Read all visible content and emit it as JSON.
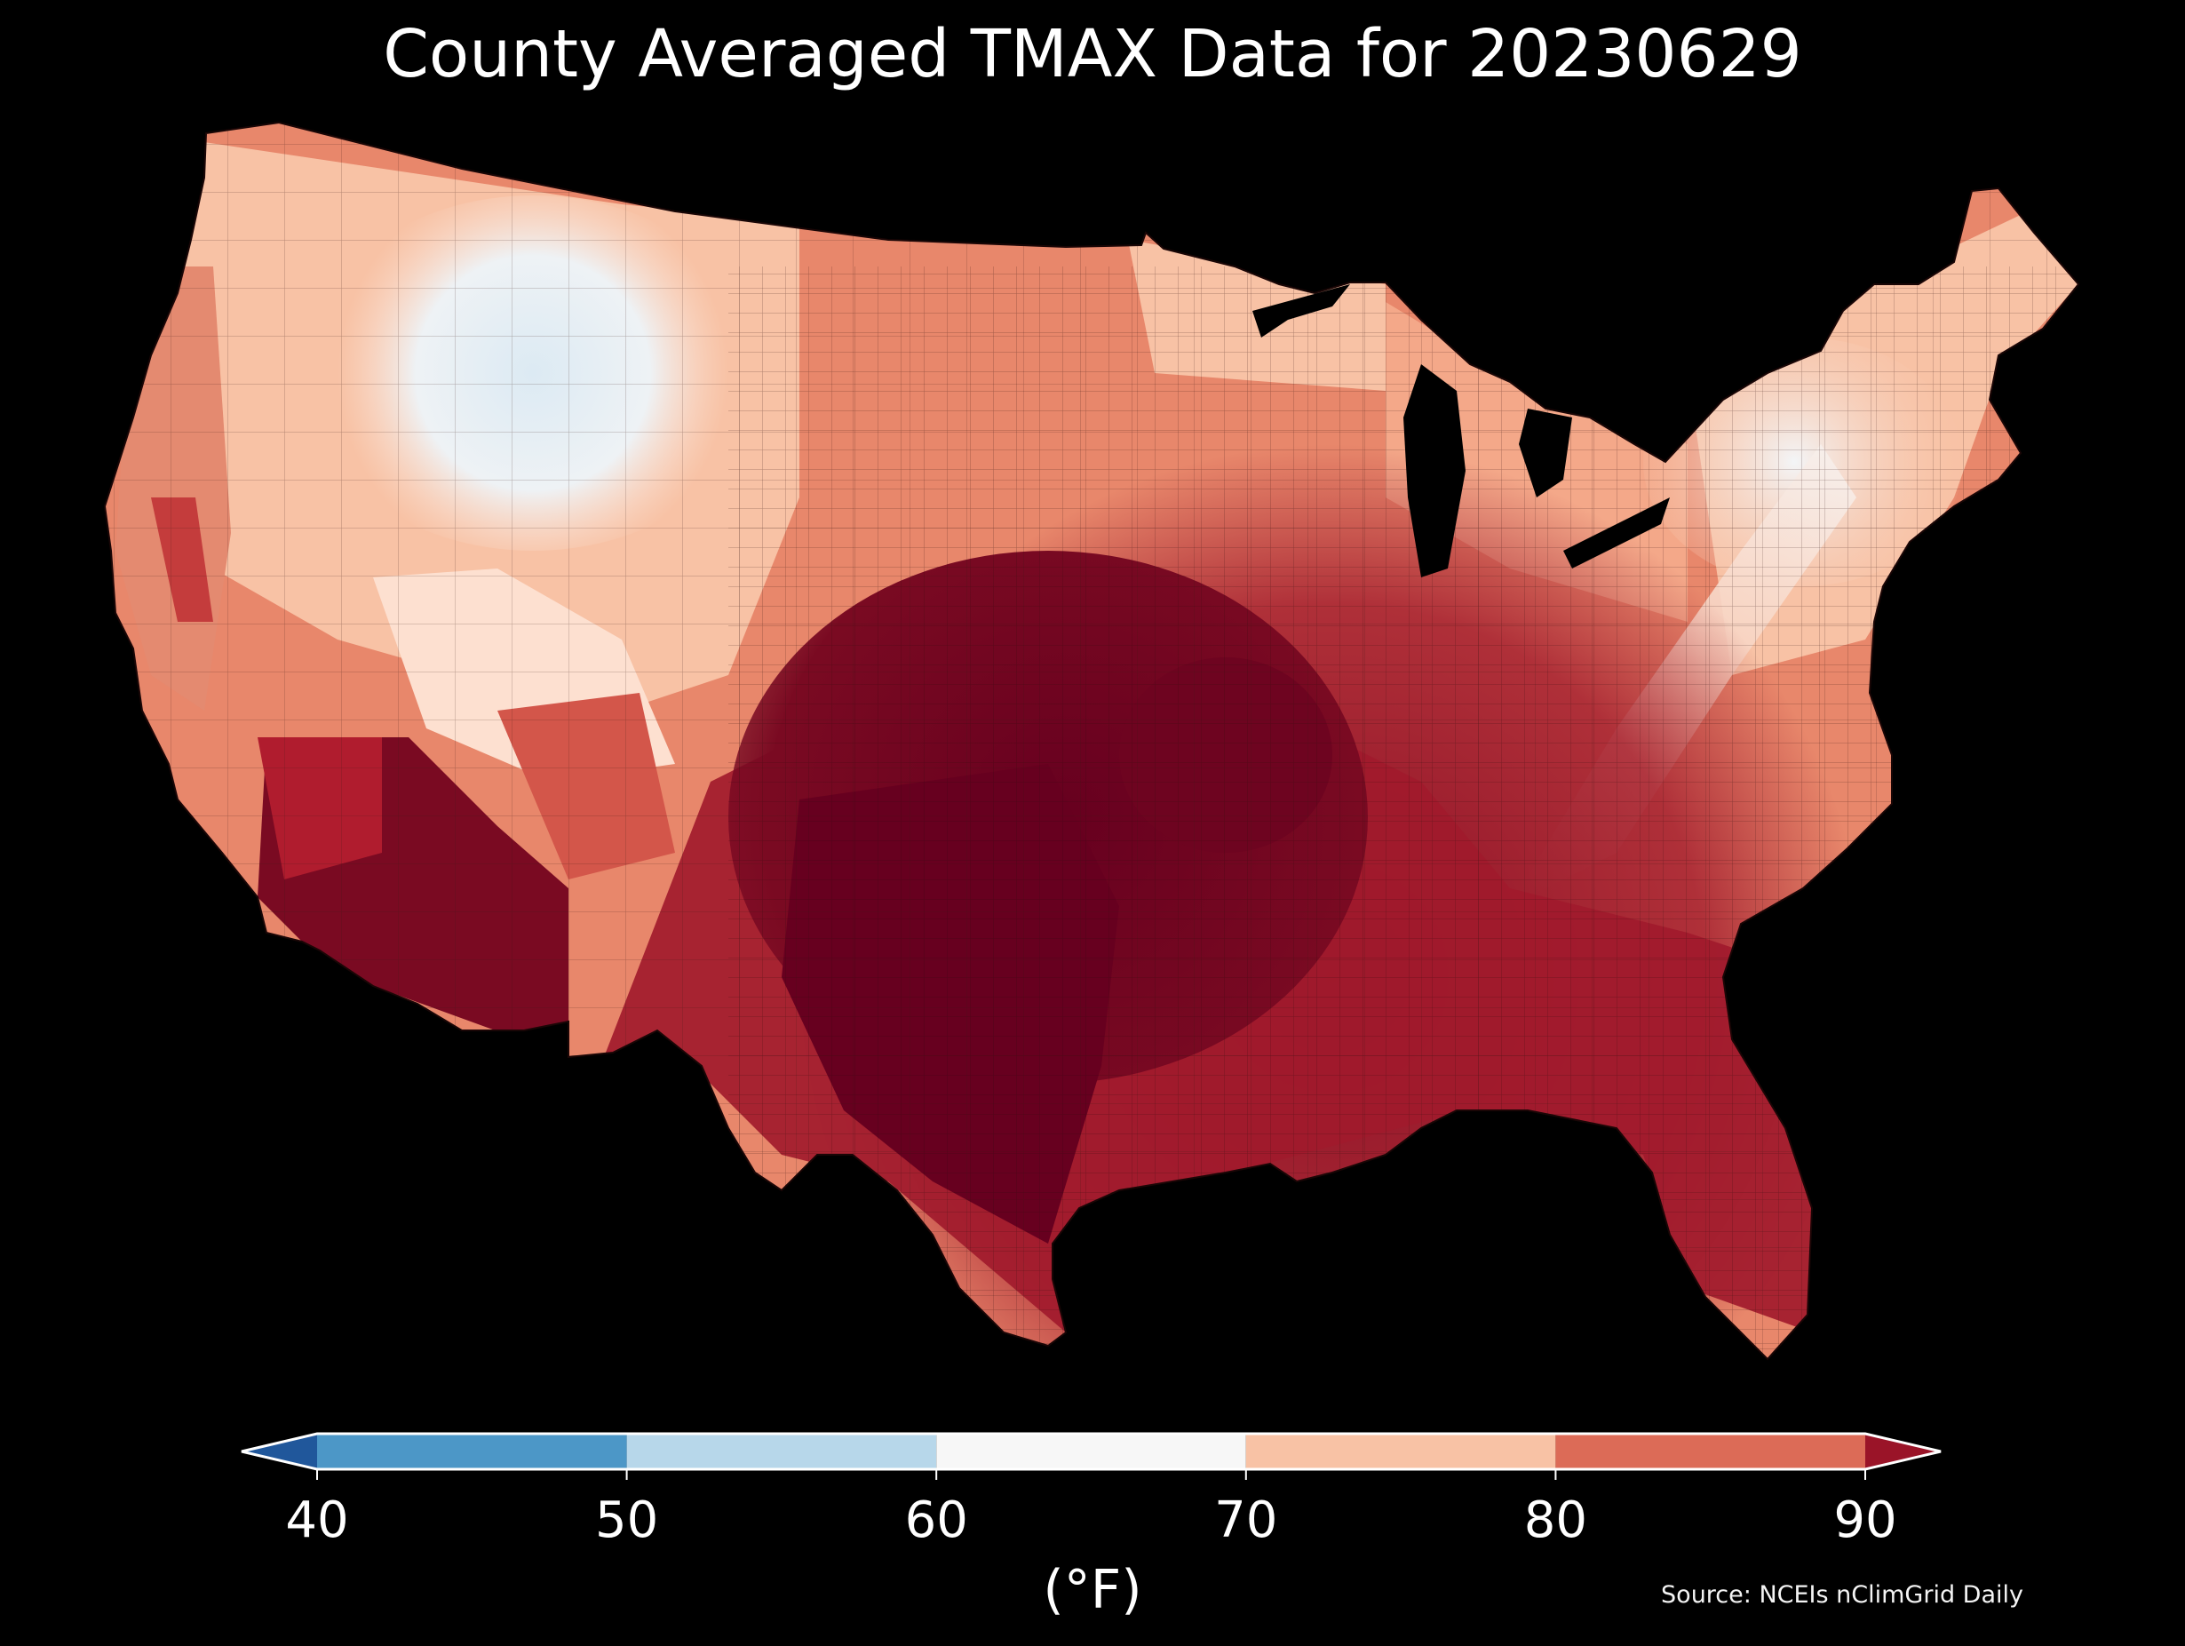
{
  "title": "County Averaged TMAX Data for 20230629",
  "colorbar": {
    "ticks": [
      "40",
      "50",
      "60",
      "70",
      "80",
      "90"
    ],
    "bins": [
      {
        "from": 40,
        "to": 50,
        "color": "#4c97c7"
      },
      {
        "from": 50,
        "to": 60,
        "color": "#b7d7ea"
      },
      {
        "from": 60,
        "to": 70,
        "color": "#f7f7f7"
      },
      {
        "from": 70,
        "to": 80,
        "color": "#f8c2a5"
      },
      {
        "from": 80,
        "to": 90,
        "color": "#dc6b57"
      }
    ],
    "under_color": "#20579b",
    "over_color": "#9a1428",
    "unit": "(°F)"
  },
  "source": "Source: NCEIs nClimGrid Daily",
  "map": {
    "extent": "contiguous-us-counties",
    "colors": {
      "very_hot": "#67001f",
      "hot": "#a11a2c",
      "warm_red": "#d3564a",
      "salmon": "#e8876b",
      "light_salmon": "#f8c2a5",
      "pale": "#fde0d0",
      "near_white": "#f7f7f7",
      "light_blue": "#dceaf3"
    }
  }
}
